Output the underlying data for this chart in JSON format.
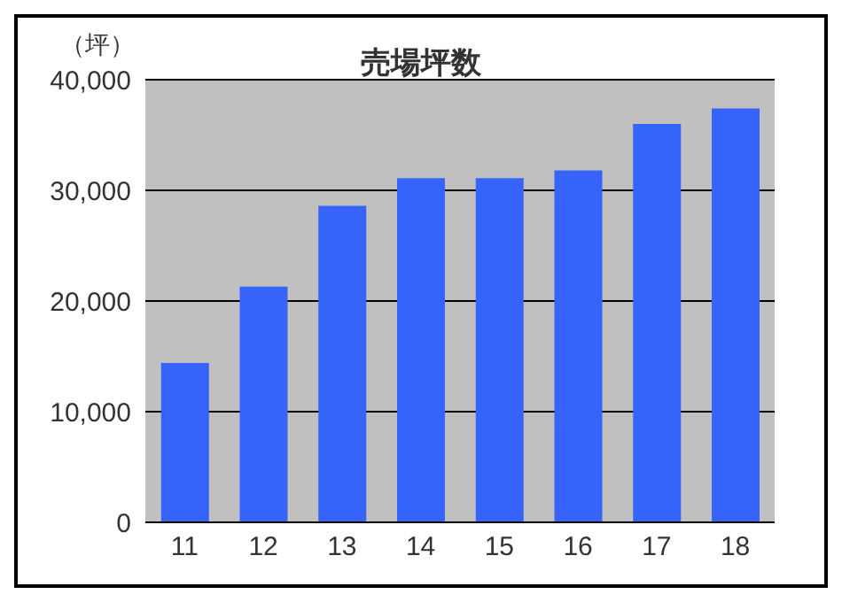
{
  "chart_data": {
    "type": "bar",
    "title": "売場坪数",
    "ylabel": "（坪）",
    "categories": [
      "11",
      "12",
      "13",
      "14",
      "15",
      "16",
      "17",
      "18"
    ],
    "values": [
      14400,
      21300,
      28600,
      31100,
      31100,
      31800,
      36000,
      37400
    ],
    "color": "#3663fa",
    "ylim": [
      0,
      40000
    ],
    "yticks": [
      0,
      {
        "value": 10000,
        "label": "10,000"
      },
      {
        "value": 20000,
        "label": "20,000"
      },
      {
        "value": 30000,
        "label": "30,000"
      },
      {
        "value": 40000,
        "label": "40,000"
      }
    ],
    "grid": "y"
  }
}
